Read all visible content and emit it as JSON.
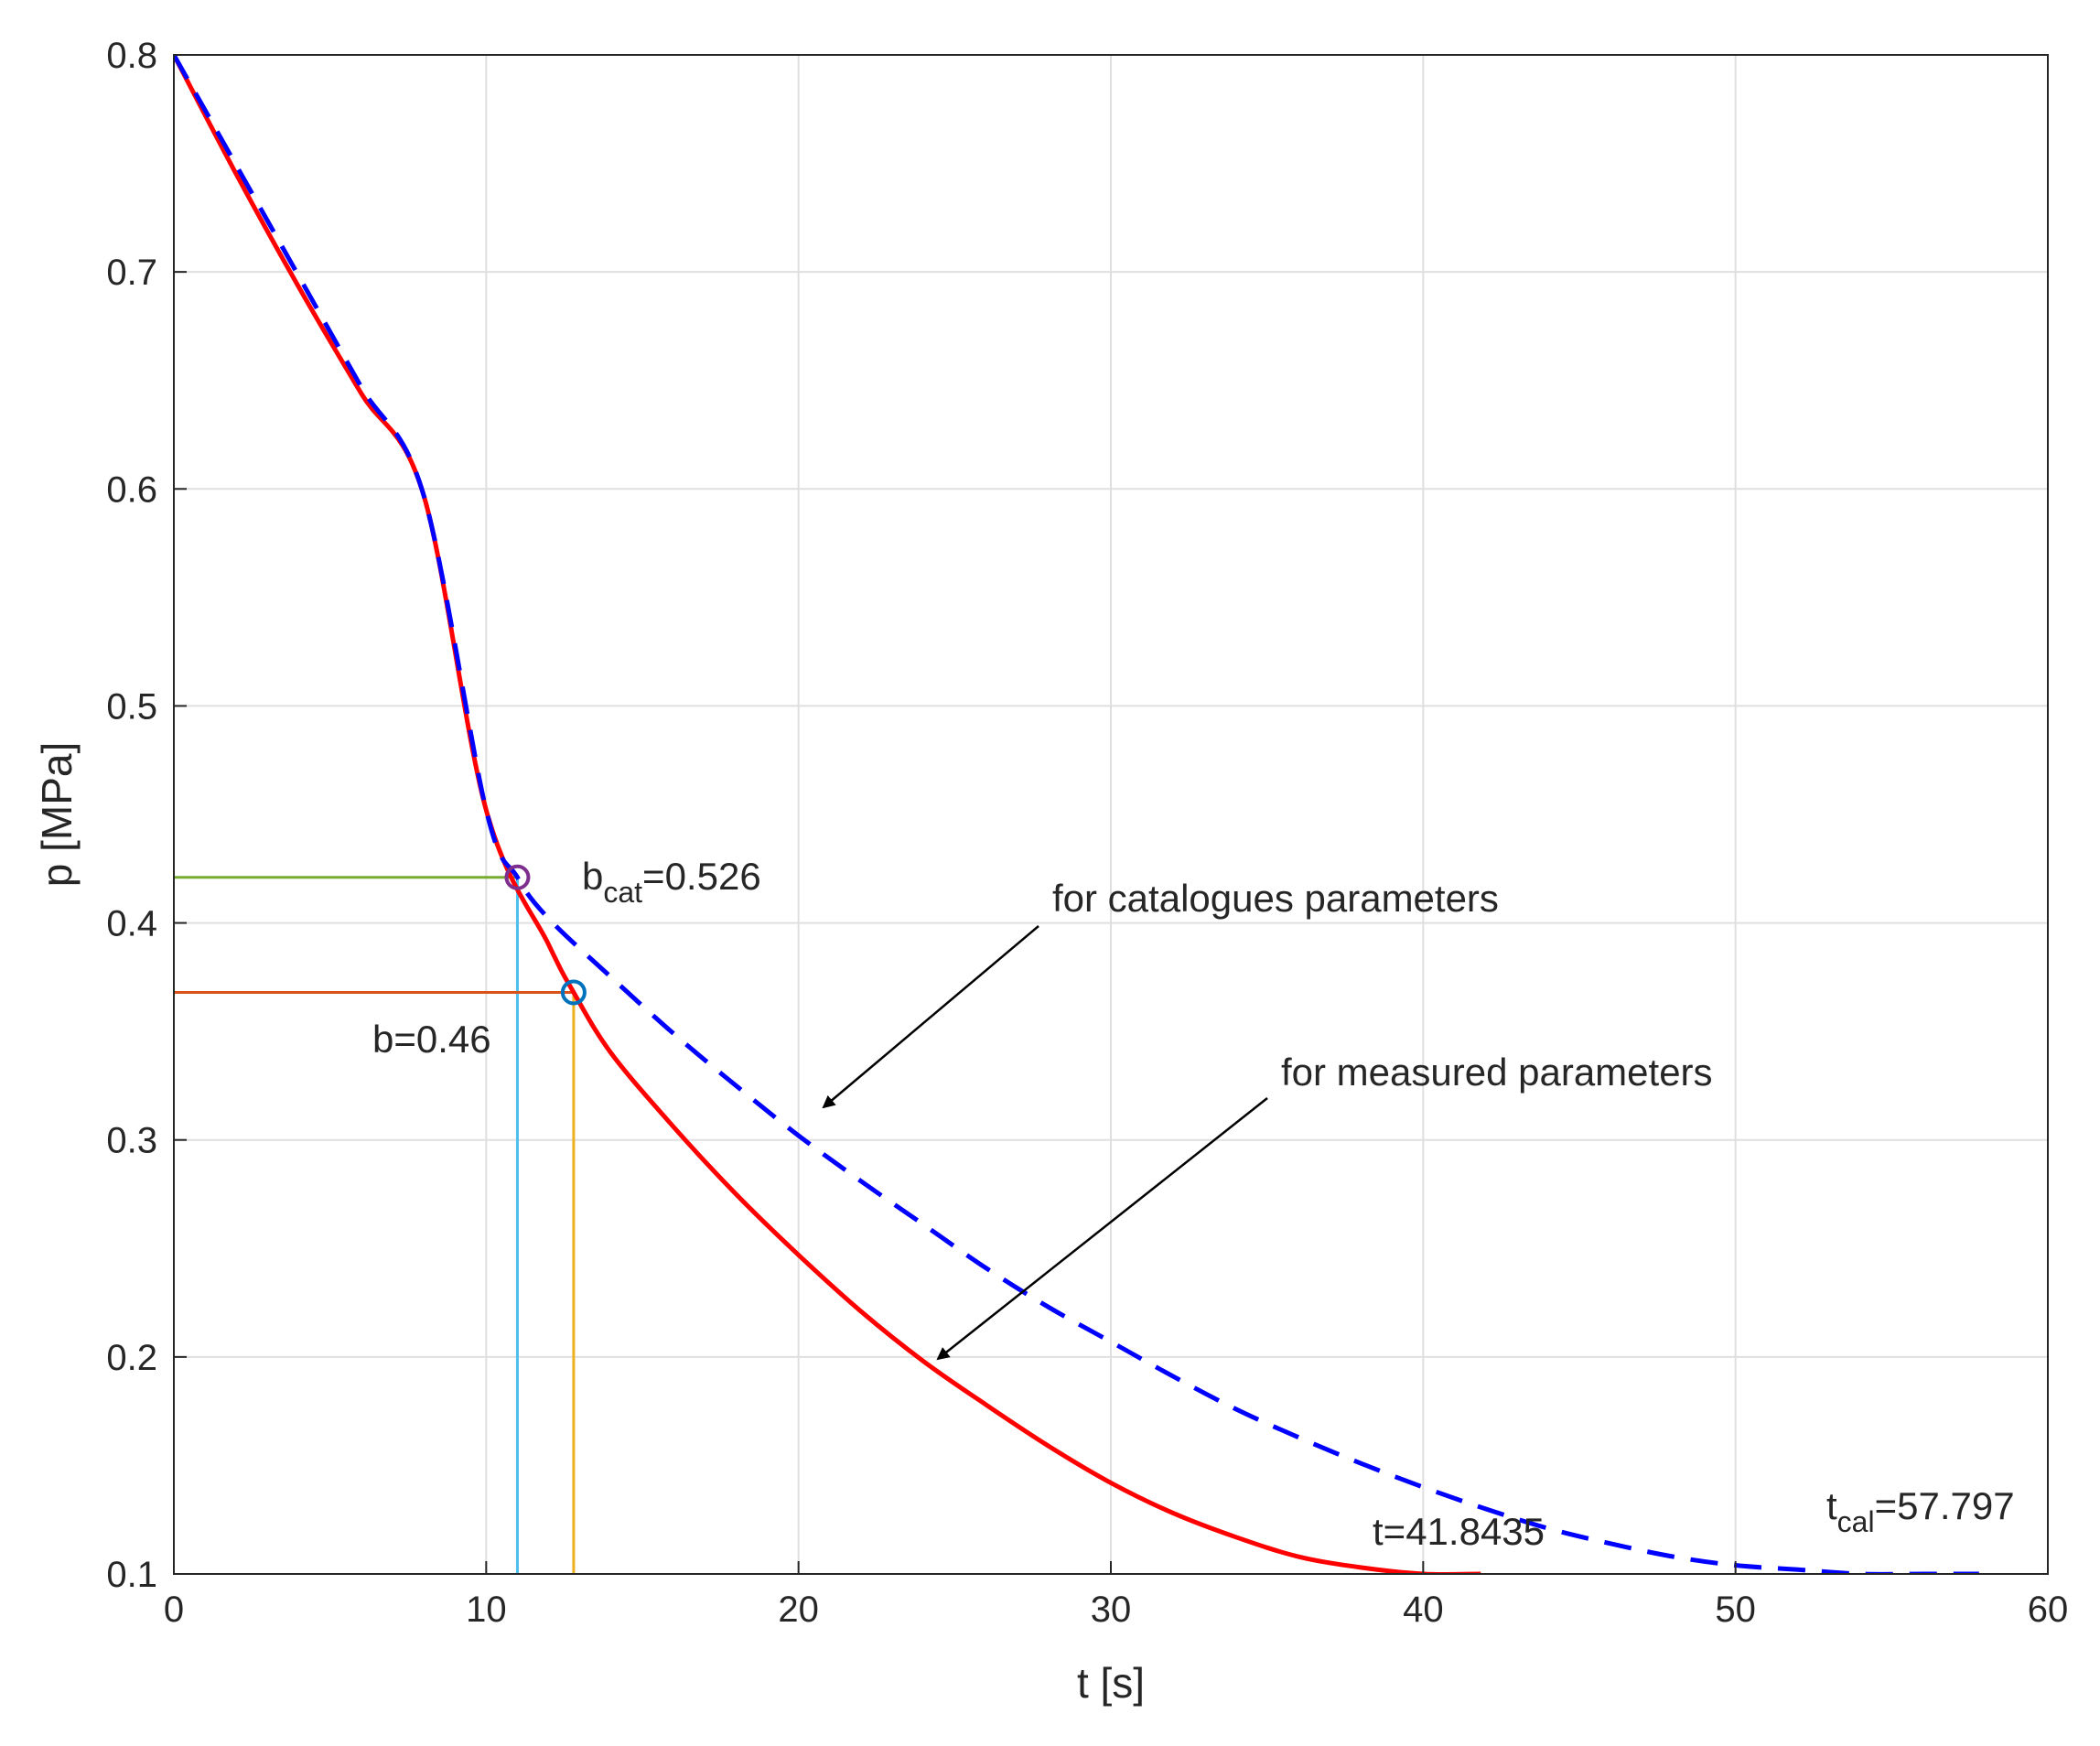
{
  "chart_data": {
    "type": "line",
    "title": "",
    "xlabel": "t [s]",
    "ylabel": "p [MPa]",
    "xlim": [
      0,
      60
    ],
    "ylim": [
      0.1,
      0.8
    ],
    "xticks": [
      0,
      10,
      20,
      30,
      40,
      50,
      60
    ],
    "yticks": [
      0.1,
      0.2,
      0.3,
      0.4,
      0.5,
      0.6,
      0.7,
      0.8
    ],
    "grid": true,
    "legend": "none",
    "colors": {
      "measured": "#ff0000",
      "catalogue": "#0000ff",
      "b_h": "#d95319",
      "b_v": "#edb120",
      "bcat_h": "#77ac30",
      "bcat_v": "#4dbeee",
      "marker_b": "#0072bd",
      "marker_bcat": "#7e2f8e"
    },
    "series": [
      {
        "style": "solid",
        "x": [
          0,
          2,
          4,
          6,
          8,
          10,
          12,
          12.8,
          14,
          16,
          18,
          20,
          22,
          24,
          26,
          28,
          30,
          32,
          34,
          36,
          38,
          40,
          41.8435
        ],
        "y": [
          0.8,
          0.745,
          0.693,
          0.644,
          0.597,
          0.452,
          0.39,
          0.368,
          0.34,
          0.306,
          0.275,
          0.247,
          0.221,
          0.198,
          0.178,
          0.159,
          0.142,
          0.128,
          0.117,
          0.108,
          0.103,
          0.1,
          0.1
        ]
      },
      {
        "style": "dashed",
        "x": [
          0,
          2,
          4,
          6,
          8,
          10,
          11,
          12,
          14,
          16,
          18,
          20,
          22,
          24,
          26,
          28,
          30,
          32,
          34,
          36,
          38,
          40,
          42,
          44,
          46,
          48,
          50,
          52,
          54,
          56,
          57.797
        ],
        "y": [
          0.8,
          0.749,
          0.698,
          0.647,
          0.597,
          0.452,
          0.421,
          0.402,
          0.375,
          0.349,
          0.325,
          0.302,
          0.281,
          0.261,
          0.241,
          0.223,
          0.207,
          0.191,
          0.176,
          0.163,
          0.151,
          0.14,
          0.13,
          0.121,
          0.114,
          0.108,
          0.104,
          0.102,
          0.1,
          0.1,
          0.1
        ]
      }
    ],
    "points": [
      {
        "label": "b",
        "x": 12.8,
        "y": 0.368
      },
      {
        "label": "b_cat",
        "x": 11.0,
        "y": 0.421
      }
    ],
    "annotations": {
      "bcat_main": "b",
      "bcat_sub": "cat",
      "bcat_value": "=0.526",
      "b_text": "b=0.46",
      "catalogue_text": "for catalogues parameters",
      "measured_text": "for measured parameters",
      "t_measured": "t=41.8435",
      "tcal_main": "t",
      "tcal_sub": "cal",
      "tcal_value": "=57.797"
    }
  }
}
